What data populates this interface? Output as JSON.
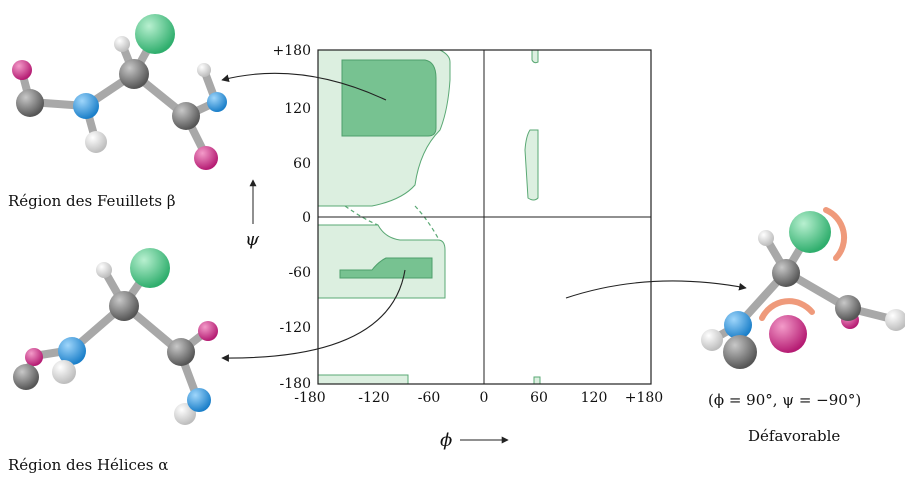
{
  "plot": {
    "x_ticks": [
      "-180",
      "-120",
      "-60",
      "0",
      "60",
      "120",
      "+180"
    ],
    "y_ticks": [
      "+180",
      "120",
      "60",
      "0",
      "-60",
      "-120",
      "-180"
    ],
    "x_axis_label": "ϕ",
    "y_axis_label": "ψ",
    "colors": {
      "allowed": "#dcefe0",
      "favored": "#77c291",
      "outline": "#5aa874"
    }
  },
  "labels": {
    "beta_region": "Région des Feuillets β",
    "alpha_region": "Région des Hélices α",
    "unfavorable_angles": "(ϕ = 90°, ψ = −90°)",
    "unfavorable": "Défavorable"
  },
  "atom_colors": {
    "carbon": "#6b6b6b",
    "nitrogen": "#2f9be0",
    "oxygen": "#d63a8f",
    "hydrogen": "#f2f2f2",
    "side_chain": "#4fc98a",
    "clash": "#ef9a7b"
  }
}
